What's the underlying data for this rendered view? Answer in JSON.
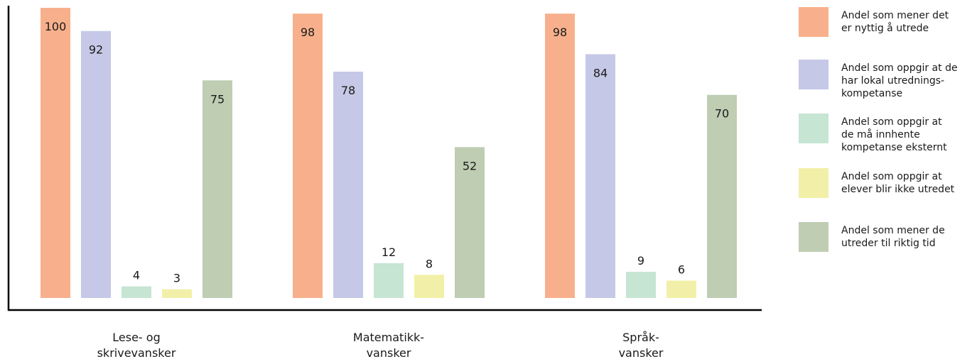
{
  "chart_data": {
    "type": "bar",
    "title": "",
    "xlabel": "",
    "ylabel": "",
    "ylim": [
      0,
      100
    ],
    "grid": false,
    "legend_position": "right",
    "categories": [
      [
        "Lese- og",
        "skrivevansker"
      ],
      [
        "Matematikk-",
        "vansker"
      ],
      [
        "Språk-",
        "vansker"
      ]
    ],
    "series": [
      {
        "name": [
          "Andel som mener det",
          "er nyttig å utrede"
        ],
        "color": "#F8B08C",
        "values": [
          100,
          98,
          98
        ]
      },
      {
        "name": [
          "Andel som oppgir at de",
          "har lokal utrednings-",
          "kompetanse"
        ],
        "color": "#C5C8E6",
        "values": [
          92,
          78,
          84
        ]
      },
      {
        "name": [
          "Andel som oppgir at",
          "de må innhente",
          "kompetanse eksternt"
        ],
        "color": "#C6E5D2",
        "values": [
          4,
          12,
          9
        ]
      },
      {
        "name": [
          "Andel som oppgir at",
          "elever blir ikke utredet"
        ],
        "color": "#F2F0A8",
        "values": [
          3,
          8,
          6
        ]
      },
      {
        "name": [
          "Andel som mener de",
          "utreder til riktig tid"
        ],
        "color": "#BFCDB3",
        "values": [
          75,
          52,
          70
        ]
      }
    ]
  }
}
